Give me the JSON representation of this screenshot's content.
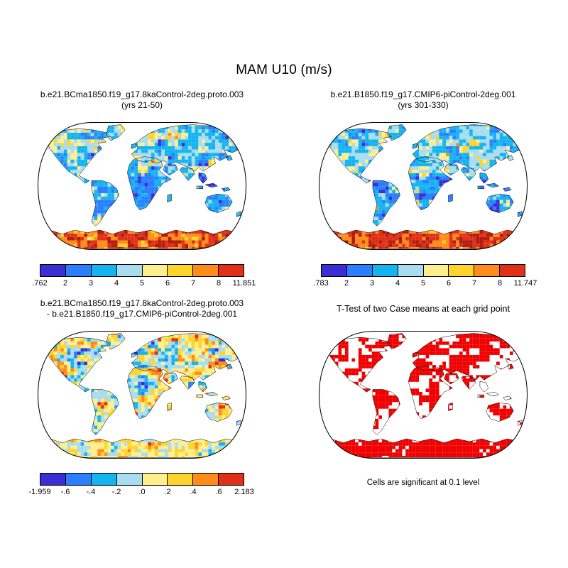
{
  "figure": {
    "title": "MAM U10 (m/s)",
    "palette": {
      "map_colors": [
        "#3b2fd4",
        "#2a7fff",
        "#14b4f0",
        "#a8dcf0",
        "#ffef8c",
        "#ffd42a",
        "#ff8c1a",
        "#e03018"
      ],
      "over_max_color": "#b01c0e",
      "ttest_significant_color": "#f00000"
    },
    "panels": [
      {
        "title_line1": "b.e21.BCma1850.f19_g17.8kaControl-2deg.proto.003",
        "title_line2": "(yrs 21-50)",
        "colorbar": {
          "colors": [
            "#3b2fd4",
            "#2a7fff",
            "#14b4f0",
            "#a8dcf0",
            "#ffef8c",
            "#ffd42a",
            "#ff8c1a",
            "#e03018"
          ],
          "labels": [
            ".762",
            "2",
            "3",
            "4",
            "5",
            "6",
            "7",
            "8",
            "11.851"
          ]
        }
      },
      {
        "title_line1": "b.e21.B1850.f19_g17.CMIP6-piControl-2deg.001",
        "title_line2": "(yrs 301-330)",
        "colorbar": {
          "colors": [
            "#3b2fd4",
            "#2a7fff",
            "#14b4f0",
            "#a8dcf0",
            "#ffef8c",
            "#ffd42a",
            "#ff8c1a",
            "#e03018"
          ],
          "labels": [
            ".783",
            "2",
            "3",
            "4",
            "5",
            "6",
            "7",
            "8",
            "11.747"
          ]
        }
      },
      {
        "title_line1": "b.e21.BCma1850.f19_g17.8kaControl-2deg.proto.003",
        "title_line2": "- b.e21.B1850.f19_g17.CMIP6-piControl-2deg.001",
        "colorbar": {
          "colors": [
            "#3b2fd4",
            "#2a7fff",
            "#14b4f0",
            "#a8dcf0",
            "#ffef8c",
            "#ffd42a",
            "#ff8c1a",
            "#e03018"
          ],
          "labels": [
            "-1.959",
            "-.6",
            "-.4",
            "-.2",
            ".0",
            ".2",
            ".4",
            ".6",
            "2.183"
          ]
        }
      },
      {
        "title_line1": "T-Test of two Case means at each grid point",
        "caption": "Cells are significant at 0.1 level"
      }
    ]
  },
  "chart_data": [
    {
      "type": "heatmap",
      "panel": "top-left",
      "title": "b.e21.BCma1850.f19_g17.8kaControl-2deg.proto.003 (yrs 21-50)",
      "variable": "MAM U10 (m/s)",
      "projection": "robinson",
      "legend_position": "bottom",
      "colorbar_boundaries": [
        0.762,
        2,
        3,
        4,
        5,
        6,
        7,
        8,
        11.851
      ],
      "data_min": 0.762,
      "data_max": 11.851,
      "colors": [
        "#3b2fd4",
        "#2a7fff",
        "#14b4f0",
        "#a8dcf0",
        "#ffef8c",
        "#ffd42a",
        "#ff8c1a",
        "#e03018"
      ]
    },
    {
      "type": "heatmap",
      "panel": "top-right",
      "title": "b.e21.B1850.f19_g17.CMIP6-piControl-2deg.001 (yrs 301-330)",
      "variable": "MAM U10 (m/s)",
      "projection": "robinson",
      "legend_position": "bottom",
      "colorbar_boundaries": [
        0.783,
        2,
        3,
        4,
        5,
        6,
        7,
        8,
        11.747
      ],
      "data_min": 0.783,
      "data_max": 11.747,
      "colors": [
        "#3b2fd4",
        "#2a7fff",
        "#14b4f0",
        "#a8dcf0",
        "#ffef8c",
        "#ffd42a",
        "#ff8c1a",
        "#e03018"
      ]
    },
    {
      "type": "heatmap",
      "panel": "bottom-left",
      "title": "b.e21.BCma1850.f19_g17.8kaControl-2deg.proto.003 - b.e21.B1850.f19_g17.CMIP6-piControl-2deg.001",
      "variable": "MAM U10 difference (m/s)",
      "projection": "robinson",
      "legend_position": "bottom",
      "colorbar_boundaries": [
        -1.959,
        -0.6,
        -0.4,
        -0.2,
        0.0,
        0.2,
        0.4,
        0.6,
        2.183
      ],
      "data_min": -1.959,
      "data_max": 2.183,
      "colors": [
        "#3b2fd4",
        "#2a7fff",
        "#14b4f0",
        "#a8dcf0",
        "#ffef8c",
        "#ffd42a",
        "#ff8c1a",
        "#e03018"
      ]
    },
    {
      "type": "heatmap",
      "panel": "bottom-right",
      "title": "T-Test of two Case means at each grid point",
      "caption": "Cells are significant at 0.1 level",
      "categories": [
        "significant at 0.1 level (red)",
        "not significant (white)"
      ],
      "colors": [
        "#f00000",
        "#ffffff"
      ],
      "projection": "robinson"
    }
  ]
}
